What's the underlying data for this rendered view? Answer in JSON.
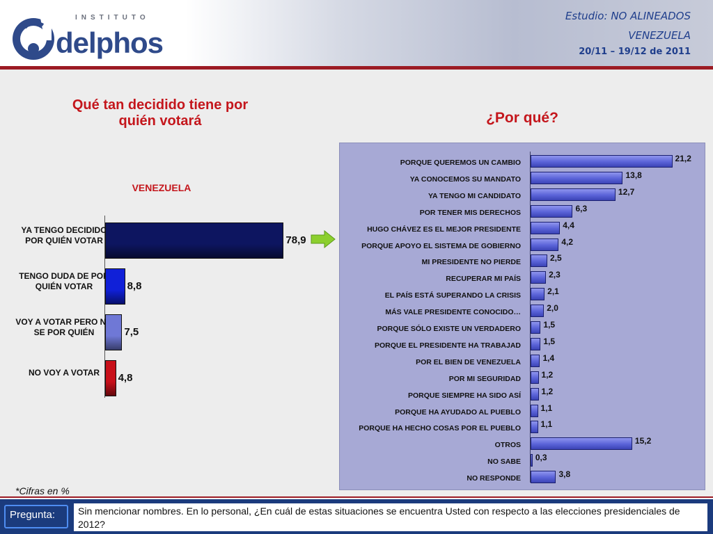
{
  "header": {
    "logo_small": "INSTITUTO",
    "logo_word": "delphos",
    "study_label": "Estudio:",
    "study_name": "NO ALINEADOS",
    "country": "VENEZUELA",
    "dates": "20/11 – 19/12 de 2011",
    "accent": "#9c1b24",
    "brand_blue": "#1f3e8c"
  },
  "left_title": "Qué tan decidido tiene por quién votará",
  "right_title": "¿Por qué?",
  "left_subtitle": "VENEZUELA",
  "note": "*Cifras en %",
  "arrow_icon": "right-arrow-icon",
  "footer": {
    "label": "Pregunta:",
    "question": "Sin mencionar nombres. En lo personal, ¿En cuál de estas situaciones se encuentra Usted con respecto a las elecciones presidenciales de 2012?"
  },
  "chart_data": [
    {
      "type": "bar",
      "orientation": "horizontal",
      "title": "Qué tan decidido tiene por quién votará",
      "subtitle": "VENEZUELA",
      "categories": [
        "YA TENGO DECIDIDO POR QUIÉN VOTAR",
        "TENGO DUDA DE POR QUIÉN VOTAR",
        "VOY A VOTAR PERO NO SE POR QUIÉN",
        "NO VOY A VOTAR"
      ],
      "values": [
        78.9,
        8.8,
        7.5,
        4.8
      ],
      "value_labels": [
        "78,9",
        "8,8",
        "7,5",
        "4,8"
      ],
      "colors": [
        "#0d1560",
        "#1020d8",
        "#6f78d6",
        "#c8101a"
      ],
      "xlim": [
        0,
        100
      ],
      "grid": false
    },
    {
      "type": "bar",
      "orientation": "horizontal",
      "title": "¿Por qué?",
      "categories": [
        "PORQUE QUEREMOS UN CAMBIO",
        "YA CONOCEMOS SU MANDATO",
        "YA TENGO MI CANDIDATO",
        "POR TENER MIS DERECHOS",
        "HUGO CHÁVEZ ES EL MEJOR PRESIDENTE",
        "PORQUE APOYO EL SISTEMA DE GOBIERNO",
        "MI PRESIDENTE NO PIERDE",
        "RECUPERAR MI PAÍS",
        "EL PAÍS ESTÁ SUPERANDO LA CRISIS",
        "MÁS VALE PRESIDENTE CONOCIDO…",
        "PORQUE SÓLO EXISTE UN VERDADERO",
        "PORQUE EL PRESIDENTE HA TRABAJAD",
        "POR EL BIEN DE VENEZUELA",
        "POR MI SEGURIDAD",
        "PORQUE SIEMPRE HA SIDO ASÍ",
        "PORQUE HA AYUDADO AL PUEBLO",
        "PORQUE HA HECHO COSAS POR EL PUEBLO",
        "OTROS",
        "NO SABE",
        "NO RESPONDE"
      ],
      "values": [
        21.2,
        13.8,
        12.7,
        6.3,
        4.4,
        4.2,
        2.5,
        2.3,
        2.1,
        2.0,
        1.5,
        1.5,
        1.4,
        1.2,
        1.2,
        1.1,
        1.1,
        15.2,
        0.3,
        3.8
      ],
      "value_labels": [
        "21,2",
        "13,8",
        "12,7",
        "6,3",
        "4,4",
        "4,2",
        "2,5",
        "2,3",
        "2,1",
        "2,0",
        "1,5",
        "1,5",
        "1,4",
        "1,2",
        "1,2",
        "1,1",
        "1,1",
        "15,2",
        "0,3",
        "3,8"
      ],
      "color": "#5a63d8",
      "xlim": [
        0,
        25
      ],
      "grid": false
    }
  ]
}
